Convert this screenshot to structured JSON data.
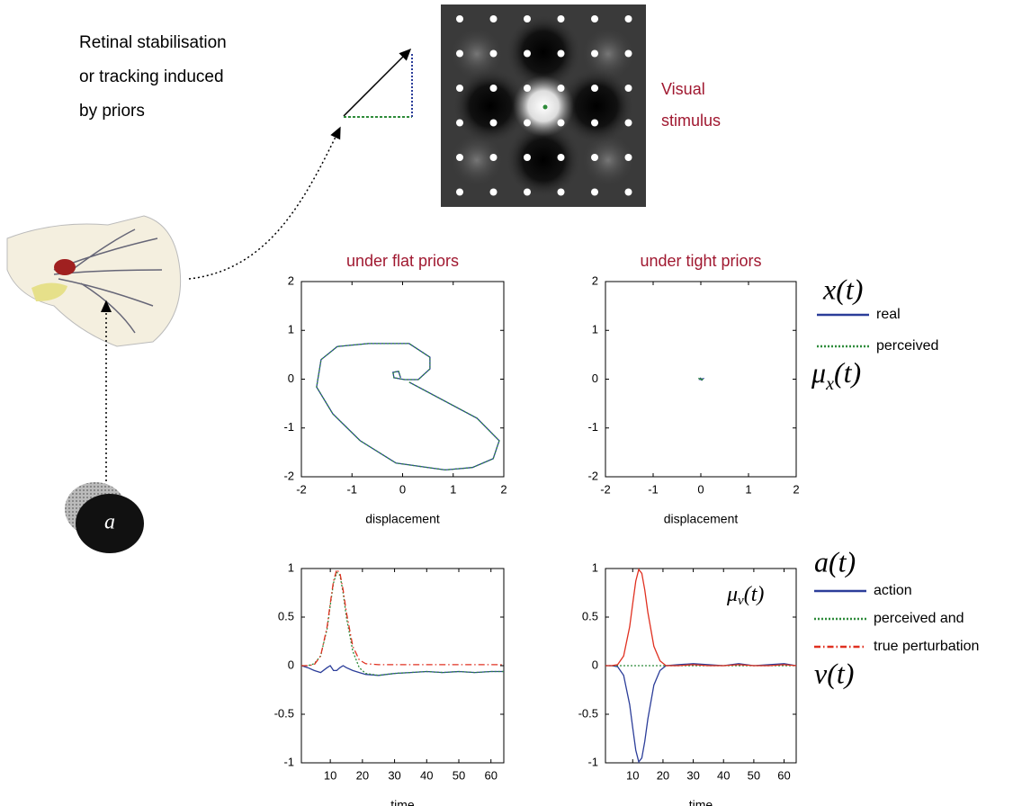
{
  "annotations": {
    "caption": [
      "Retinal stabilisation",
      "or tracking induced",
      "by priors"
    ],
    "stimulus_label": [
      "Visual",
      "stimulus"
    ],
    "action_symbol": "a",
    "top_symbol": "x(t)",
    "top_belief": {
      "base": "μ",
      "sub": "x",
      "arg": "(t)"
    },
    "bottom_symbol_a": "a(t)",
    "bottom_symbol_v": "v(t)",
    "inner_belief": {
      "base": "μ",
      "sub": "v",
      "arg": "(t)"
    }
  },
  "chart_data": [
    {
      "type": "line",
      "title": "under flat priors",
      "x_label": "displacement",
      "xlim": [
        -2,
        2
      ],
      "ylim": [
        -2,
        2
      ],
      "xticks": [
        -2,
        -1,
        0,
        1,
        2
      ],
      "yticks": [
        -2,
        -1,
        0,
        1,
        2
      ],
      "legend": "outside-right",
      "series": [
        {
          "name": "real",
          "color": "#2b3d99",
          "style": "solid",
          "x": [
            0.13,
            1.47,
            1.91,
            1.79,
            1.38,
            0.84,
            -0.13,
            -0.84,
            -1.38,
            -1.7,
            -1.61,
            -1.29,
            -0.67,
            0.13,
            0.54,
            0.54,
            0.31,
            0.04,
            -0.17,
            -0.19,
            -0.08,
            -0.04
          ],
          "values": [
            -0.06,
            -0.8,
            -1.26,
            -1.63,
            -1.81,
            -1.86,
            -1.72,
            -1.26,
            -0.71,
            -0.16,
            0.4,
            0.67,
            0.73,
            0.73,
            0.45,
            0.21,
            -0.01,
            -0.01,
            0.03,
            0.14,
            0.16,
            0.03
          ]
        },
        {
          "name": "perceived",
          "color": "#2e8b3a",
          "style": "dotted",
          "x": [
            0.13,
            1.47,
            1.91,
            1.79,
            1.38,
            0.84,
            -0.13,
            -0.84,
            -1.38,
            -1.7,
            -1.61,
            -1.29,
            -0.67,
            0.13,
            0.54,
            0.54,
            0.31,
            0.04,
            -0.17,
            -0.19,
            -0.08,
            -0.04
          ],
          "values": [
            -0.06,
            -0.8,
            -1.26,
            -1.63,
            -1.81,
            -1.86,
            -1.72,
            -1.26,
            -0.71,
            -0.16,
            0.4,
            0.67,
            0.73,
            0.73,
            0.45,
            0.21,
            -0.01,
            -0.01,
            0.03,
            0.14,
            0.16,
            0.03
          ]
        }
      ]
    },
    {
      "type": "line",
      "title": "under tight priors",
      "x_label": "displacement",
      "xlim": [
        -2,
        2
      ],
      "ylim": [
        -2,
        2
      ],
      "xticks": [
        -2,
        -1,
        0,
        1,
        2
      ],
      "yticks": [
        -2,
        -1,
        0,
        1,
        2
      ],
      "series": [
        {
          "color": "#2b3d99",
          "style": "solid",
          "x": [
            -0.05,
            0.02,
            0.05,
            -0.02,
            0.0
          ],
          "values": [
            0.02,
            -0.02,
            0.01,
            0.0,
            0.03
          ]
        },
        {
          "color": "#2e8b3a",
          "style": "dotted",
          "x": [
            -0.05,
            0.02,
            0.05,
            -0.02,
            0.0
          ],
          "values": [
            0.02,
            -0.02,
            0.01,
            0.0,
            0.03
          ]
        }
      ]
    },
    {
      "type": "line",
      "x_label": "time",
      "x": [
        1,
        3,
        5,
        7,
        9,
        10,
        11,
        12,
        13,
        14,
        15,
        17,
        19,
        21,
        25,
        30,
        35,
        40,
        45,
        50,
        55,
        60,
        64
      ],
      "xlim": [
        1,
        64
      ],
      "ylim": [
        -1,
        1
      ],
      "xticks": [
        10,
        20,
        30,
        40,
        50,
        60
      ],
      "yticks": [
        -1,
        -0.5,
        0,
        0.5,
        1
      ],
      "legend": "outside-right",
      "series": [
        {
          "name": "action",
          "color": "#2b3d99",
          "style": "solid",
          "values": [
            0,
            -0.02,
            -0.05,
            -0.07,
            -0.02,
            0,
            -0.05,
            -0.05,
            -0.02,
            0,
            -0.02,
            -0.05,
            -0.07,
            -0.09,
            -0.1,
            -0.08,
            -0.07,
            -0.06,
            -0.07,
            -0.06,
            -0.07,
            -0.06,
            -0.06
          ]
        },
        {
          "name": "perceived and",
          "color": "#2e8b3a",
          "style": "dotted",
          "values": [
            0,
            0,
            0.02,
            0.1,
            0.38,
            0.62,
            0.85,
            0.96,
            0.93,
            0.75,
            0.5,
            0.15,
            -0.02,
            -0.08,
            -0.1,
            -0.08,
            -0.07,
            -0.06,
            -0.07,
            -0.06,
            -0.07,
            -0.06,
            -0.06
          ]
        },
        {
          "name": "true perturbation",
          "color": "#e03020",
          "style": "dashdot",
          "values": [
            0,
            0,
            0.01,
            0.1,
            0.4,
            0.64,
            0.87,
            0.99,
            0.95,
            0.78,
            0.55,
            0.2,
            0.06,
            0.02,
            0.01,
            0.01,
            0.01,
            0.01,
            0.01,
            0.01,
            0.01,
            0.01,
            0.01
          ]
        }
      ]
    },
    {
      "type": "line",
      "x_label": "time",
      "x": [
        1,
        3,
        5,
        7,
        9,
        10,
        11,
        12,
        13,
        14,
        15,
        17,
        19,
        21,
        25,
        30,
        35,
        40,
        45,
        50,
        55,
        60,
        64
      ],
      "xlim": [
        1,
        64
      ],
      "ylim": [
        -1,
        1
      ],
      "xticks": [
        10,
        20,
        30,
        40,
        50,
        60
      ],
      "yticks": [
        -1,
        -0.5,
        0,
        0.5,
        1
      ],
      "series": [
        {
          "color": "#2b3d99",
          "style": "solid",
          "values": [
            0,
            0,
            -0.01,
            -0.1,
            -0.4,
            -0.64,
            -0.87,
            -0.99,
            -0.95,
            -0.78,
            -0.55,
            -0.2,
            -0.05,
            0,
            0.01,
            0.02,
            0.01,
            0,
            0.02,
            0,
            0.01,
            0.02,
            0
          ]
        },
        {
          "color": "#2e8b3a",
          "style": "dotted",
          "values": [
            0,
            0,
            0,
            0,
            0,
            0,
            0,
            0,
            0,
            0,
            0,
            0,
            0,
            0,
            0,
            0,
            0,
            0,
            0,
            0,
            0,
            0,
            0
          ]
        },
        {
          "color": "#e03020",
          "style": "solid",
          "values": [
            0,
            0,
            0.01,
            0.1,
            0.4,
            0.64,
            0.87,
            0.99,
            0.95,
            0.78,
            0.55,
            0.2,
            0.05,
            0,
            0,
            0.01,
            0,
            0,
            0.01,
            0,
            0,
            0.01,
            0
          ]
        }
      ]
    }
  ]
}
